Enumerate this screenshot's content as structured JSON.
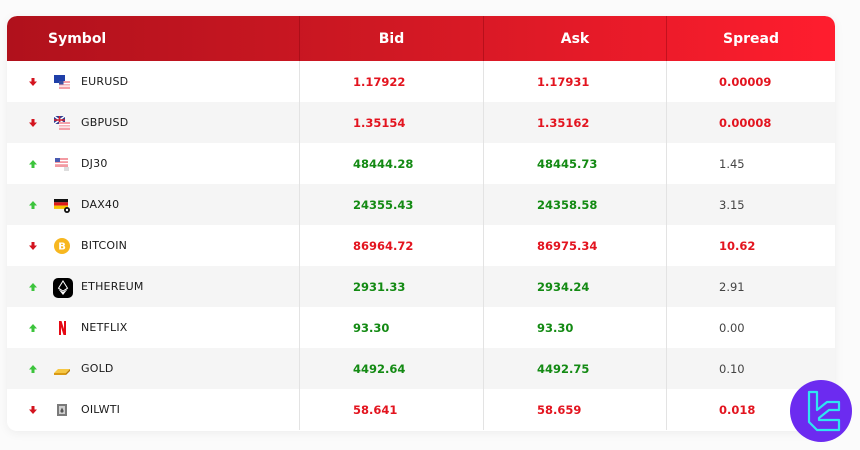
{
  "colors": {
    "header_start": "#b0111c",
    "header_end": "#ff1d2e",
    "up": "#138a13",
    "down": "#e3141f",
    "neutral": "#444444",
    "brand_bg": "#6c2bf0",
    "brand_fg": "#2ee6f0"
  },
  "table": {
    "headers": [
      "Symbol",
      "Bid",
      "Ask",
      "Spread"
    ],
    "rows": [
      {
        "symbol": "EURUSD",
        "icon": "eu-us-flag-icon",
        "direction": "down",
        "bid": "1.17922",
        "ask": "1.17931",
        "spread": "0.00009",
        "spread_style": "down"
      },
      {
        "symbol": "GBPUSD",
        "icon": "uk-us-flag-icon",
        "direction": "down",
        "bid": "1.35154",
        "ask": "1.35162",
        "spread": "0.00008",
        "spread_style": "down"
      },
      {
        "symbol": "DJ30",
        "icon": "us-flag-icon",
        "direction": "up",
        "bid": "48444.28",
        "ask": "48445.73",
        "spread": "1.45",
        "spread_style": "neutral"
      },
      {
        "symbol": "DAX40",
        "icon": "germany-flag-icon",
        "direction": "up",
        "bid": "24355.43",
        "ask": "24358.58",
        "spread": "3.15",
        "spread_style": "neutral"
      },
      {
        "symbol": "BITCOIN",
        "icon": "bitcoin-icon",
        "direction": "down",
        "bid": "86964.72",
        "ask": "86975.34",
        "spread": "10.62",
        "spread_style": "down"
      },
      {
        "symbol": "ETHEREUM",
        "icon": "ethereum-icon",
        "direction": "up",
        "bid": "2931.33",
        "ask": "2934.24",
        "spread": "2.91",
        "spread_style": "neutral"
      },
      {
        "symbol": "NETFLIX",
        "icon": "netflix-icon",
        "direction": "up",
        "bid": "93.30",
        "ask": "93.30",
        "spread": "0.00",
        "spread_style": "neutral"
      },
      {
        "symbol": "GOLD",
        "icon": "gold-bar-icon",
        "direction": "up",
        "bid": "4492.64",
        "ask": "4492.75",
        "spread": "0.10",
        "spread_style": "neutral"
      },
      {
        "symbol": "OILWTI",
        "icon": "oil-barrel-icon",
        "direction": "down",
        "bid": "58.641",
        "ask": "58.659",
        "spread": "0.018",
        "spread_style": "down"
      }
    ]
  },
  "brand": {
    "icon": "tc-logo-icon"
  }
}
